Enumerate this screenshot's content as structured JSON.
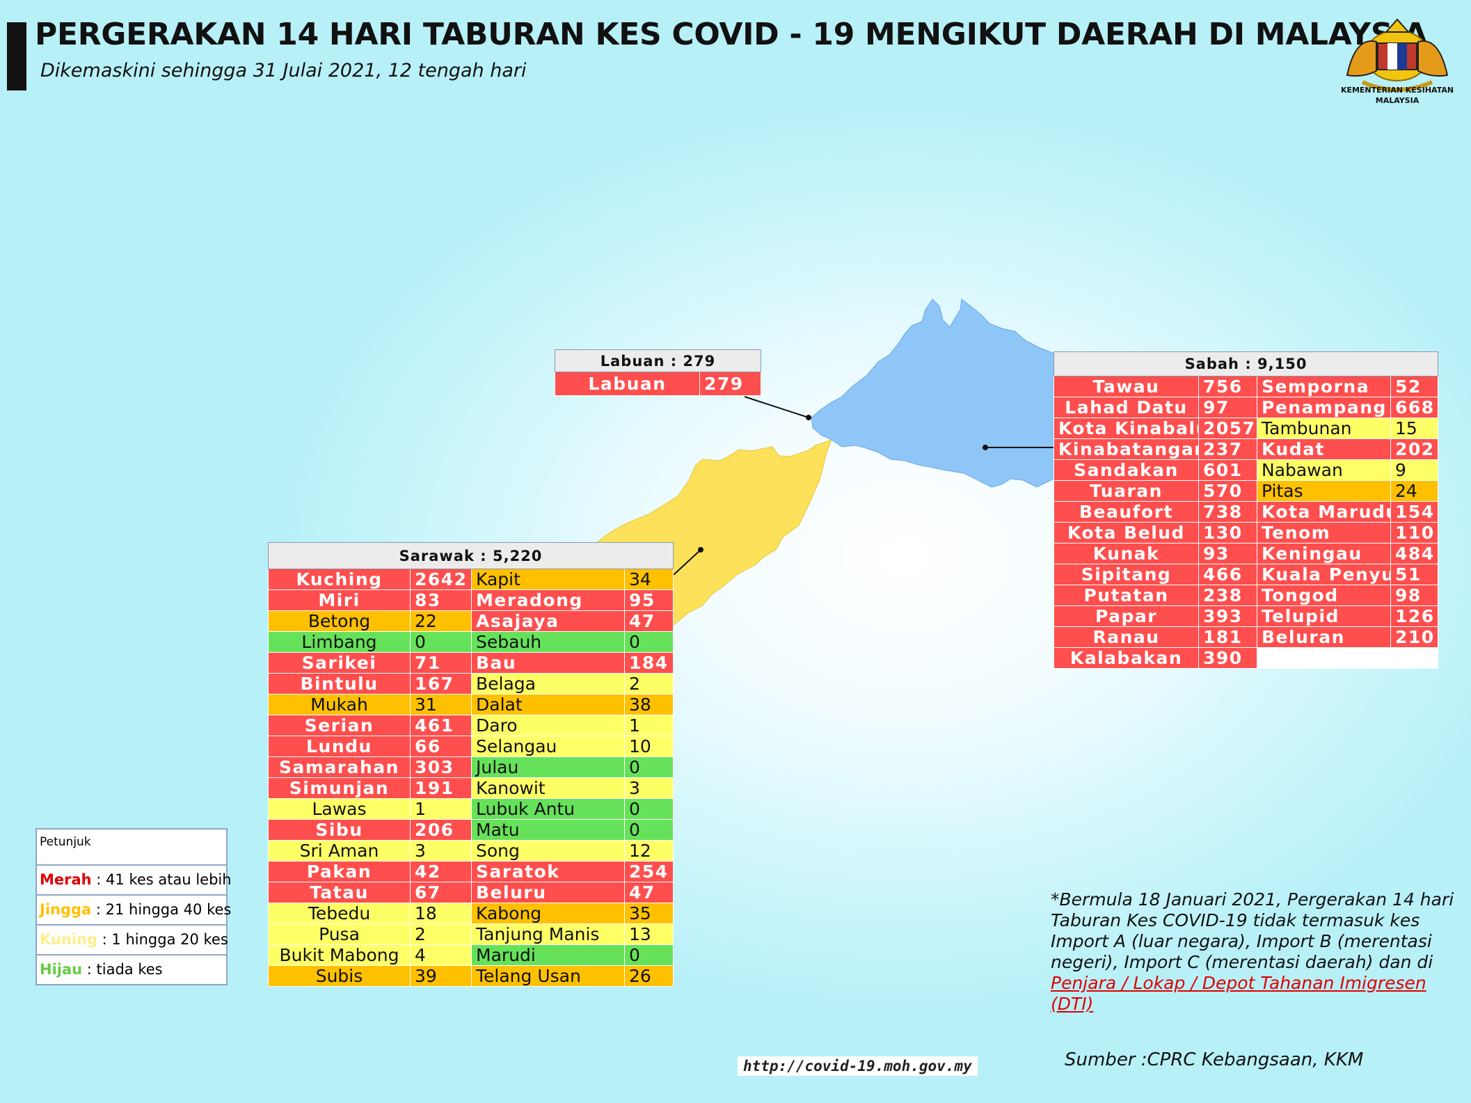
{
  "header": {
    "title": "PERGERAKAN 14 HARI TABURAN KES COVID - 19 MENGIKUT DAERAH DI MALAYSIA",
    "subtitle": "Dikemaskini sehingga 31 Julai 2021, 12 tengah hari"
  },
  "logo": {
    "text_line1": "KEMENTERIAN KESIHATAN",
    "text_line2": "MALAYSIA"
  },
  "colors": {
    "merah": "#fe4e4e",
    "jingga": "#ffc000",
    "kuning": "#ffff66",
    "hijau": "#66e25a",
    "sabah_map": "#8ec6f8",
    "sarawak_map": "#fde15a"
  },
  "labuan": {
    "header": "Labuan : 279",
    "rows": [
      {
        "name": "Labuan",
        "value": "279",
        "level": "red"
      }
    ]
  },
  "sabah": {
    "header": "Sabah : 9,150",
    "rows": [
      [
        {
          "name": "Tawau",
          "value": "756",
          "level": "red"
        },
        {
          "name": "Semporna",
          "value": "52",
          "level": "red"
        }
      ],
      [
        {
          "name": "Lahad Datu",
          "value": "97",
          "level": "red"
        },
        {
          "name": "Penampang",
          "value": "668",
          "level": "red"
        }
      ],
      [
        {
          "name": "Kota Kinabalu",
          "value": "2057",
          "level": "red"
        },
        {
          "name": "Tambunan",
          "value": "15",
          "level": "yel"
        }
      ],
      [
        {
          "name": "Kinabatangan",
          "value": "237",
          "level": "red"
        },
        {
          "name": "Kudat",
          "value": "202",
          "level": "red"
        }
      ],
      [
        {
          "name": "Sandakan",
          "value": "601",
          "level": "red"
        },
        {
          "name": "Nabawan",
          "value": "9",
          "level": "yel"
        }
      ],
      [
        {
          "name": "Tuaran",
          "value": "570",
          "level": "red"
        },
        {
          "name": "Pitas",
          "value": "24",
          "level": "org"
        }
      ],
      [
        {
          "name": "Beaufort",
          "value": "738",
          "level": "red"
        },
        {
          "name": "Kota Marudu",
          "value": "154",
          "level": "red"
        }
      ],
      [
        {
          "name": "Kota Belud",
          "value": "130",
          "level": "red"
        },
        {
          "name": "Tenom",
          "value": "110",
          "level": "red"
        }
      ],
      [
        {
          "name": "Kunak",
          "value": "93",
          "level": "red"
        },
        {
          "name": "Keningau",
          "value": "484",
          "level": "red"
        }
      ],
      [
        {
          "name": "Sipitang",
          "value": "466",
          "level": "red"
        },
        {
          "name": "Kuala Penyu",
          "value": "51",
          "level": "red"
        }
      ],
      [
        {
          "name": "Putatan",
          "value": "238",
          "level": "red"
        },
        {
          "name": "Tongod",
          "value": "98",
          "level": "red"
        }
      ],
      [
        {
          "name": "Papar",
          "value": "393",
          "level": "red"
        },
        {
          "name": "Telupid",
          "value": "126",
          "level": "red"
        }
      ],
      [
        {
          "name": "Ranau",
          "value": "181",
          "level": "red"
        },
        {
          "name": "Beluran",
          "value": "210",
          "level": "red"
        }
      ],
      [
        {
          "name": "Kalabakan",
          "value": "390",
          "level": "red"
        },
        {
          "name": "",
          "value": "",
          "level": "emp"
        }
      ]
    ]
  },
  "sarawak": {
    "header": "Sarawak : 5,220",
    "rows": [
      [
        {
          "name": "Kuching",
          "value": "2642",
          "level": "red"
        },
        {
          "name": "Kapit",
          "value": "34",
          "level": "org"
        }
      ],
      [
        {
          "name": "Miri",
          "value": "83",
          "level": "red"
        },
        {
          "name": "Meradong",
          "value": "95",
          "level": "red"
        }
      ],
      [
        {
          "name": "Betong",
          "value": "22",
          "level": "org"
        },
        {
          "name": "Asajaya",
          "value": "47",
          "level": "red"
        }
      ],
      [
        {
          "name": "Limbang",
          "value": "0",
          "level": "grn"
        },
        {
          "name": "Sebauh",
          "value": "0",
          "level": "grn"
        }
      ],
      [
        {
          "name": "Sarikei",
          "value": "71",
          "level": "red"
        },
        {
          "name": "Bau",
          "value": "184",
          "level": "red"
        }
      ],
      [
        {
          "name": "Bintulu",
          "value": "167",
          "level": "red"
        },
        {
          "name": "Belaga",
          "value": "2",
          "level": "yel"
        }
      ],
      [
        {
          "name": "Mukah",
          "value": "31",
          "level": "org"
        },
        {
          "name": "Dalat",
          "value": "38",
          "level": "org"
        }
      ],
      [
        {
          "name": "Serian",
          "value": "461",
          "level": "red"
        },
        {
          "name": "Daro",
          "value": "1",
          "level": "yel"
        }
      ],
      [
        {
          "name": "Lundu",
          "value": "66",
          "level": "red"
        },
        {
          "name": "Selangau",
          "value": "10",
          "level": "yel"
        }
      ],
      [
        {
          "name": "Samarahan",
          "value": "303",
          "level": "red"
        },
        {
          "name": "Julau",
          "value": "0",
          "level": "grn"
        }
      ],
      [
        {
          "name": "Simunjan",
          "value": "191",
          "level": "red"
        },
        {
          "name": "Kanowit",
          "value": "3",
          "level": "yel"
        }
      ],
      [
        {
          "name": "Lawas",
          "value": "1",
          "level": "yel"
        },
        {
          "name": "Lubuk Antu",
          "value": "0",
          "level": "grn"
        }
      ],
      [
        {
          "name": "Sibu",
          "value": "206",
          "level": "red"
        },
        {
          "name": "Matu",
          "value": "0",
          "level": "grn"
        }
      ],
      [
        {
          "name": "Sri Aman",
          "value": "3",
          "level": "yel"
        },
        {
          "name": "Song",
          "value": "12",
          "level": "yel"
        }
      ],
      [
        {
          "name": "Pakan",
          "value": "42",
          "level": "red"
        },
        {
          "name": "Saratok",
          "value": "254",
          "level": "red"
        }
      ],
      [
        {
          "name": "Tatau",
          "value": "67",
          "level": "red"
        },
        {
          "name": "Beluru",
          "value": "47",
          "level": "red"
        }
      ],
      [
        {
          "name": "Tebedu",
          "value": "18",
          "level": "yel"
        },
        {
          "name": "Kabong",
          "value": "35",
          "level": "org"
        }
      ],
      [
        {
          "name": "Pusa",
          "value": "2",
          "level": "yel"
        },
        {
          "name": "Tanjung Manis",
          "value": "13",
          "level": "yel"
        }
      ],
      [
        {
          "name": "Bukit Mabong",
          "value": "4",
          "level": "yel"
        },
        {
          "name": "Marudi",
          "value": "0",
          "level": "grn"
        }
      ],
      [
        {
          "name": "Subis",
          "value": "39",
          "level": "org"
        },
        {
          "name": "Telang Usan",
          "value": "26",
          "level": "org"
        }
      ]
    ]
  },
  "legend": {
    "title": "Petunjuk",
    "items": [
      {
        "label": "Merah",
        "desc": " : 41 kes atau lebih",
        "color": "#e00000"
      },
      {
        "label": "Jingga",
        "desc": " : 21 hingga 40 kes",
        "color": "#ffc000"
      },
      {
        "label": "Kuning",
        "desc": " : 1 hingga 20 kes",
        "color": "#ffee88"
      },
      {
        "label": "Hijau",
        "desc": " : tiada kes",
        "color": "#66cc44"
      }
    ]
  },
  "note": {
    "text": "*Bermula 18 Januari 2021, Pergerakan 14 hari Taburan Kes COVID-19 tidak termasuk kes Import A (luar negara), Import B (merentasi negeri), Import C (merentasi daerah) dan di ",
    "link": "Penjara / Lokap / Depot Tahanan Imigresen (DTI)"
  },
  "source": "Sumber :CPRC Kebangsaan,  KKM",
  "url": "http://covid-19.moh.gov.my"
}
